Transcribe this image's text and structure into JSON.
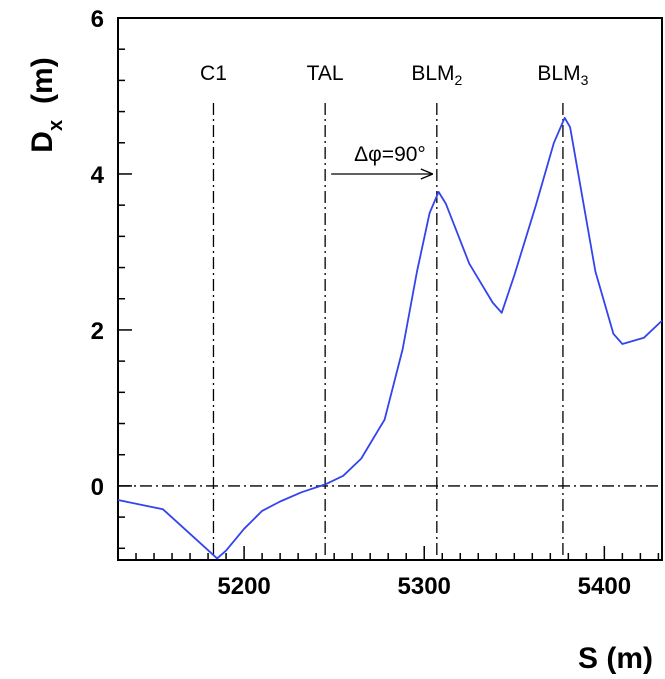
{
  "chart_data": {
    "type": "line",
    "title": "",
    "xlabel": "S  (m)",
    "ylabel": {
      "main": "D",
      "sub": "x",
      "unit": "(m)"
    },
    "xlim": [
      5130,
      5432
    ],
    "ylim": [
      -0.95,
      6
    ],
    "xticks": [
      5200,
      5300,
      5400
    ],
    "yticks": [
      0,
      2,
      4,
      6
    ],
    "grid": false,
    "series": [
      {
        "color": "#3344ee",
        "x": [
          5130,
          5155,
          5175,
          5185,
          5190,
          5200,
          5210,
          5220,
          5232,
          5245,
          5255,
          5265,
          5278,
          5288,
          5296,
          5303,
          5308,
          5312,
          5325,
          5338,
          5343,
          5350,
          5362,
          5372,
          5378,
          5381,
          5395,
          5405,
          5410,
          5422,
          5432
        ],
        "y": [
          -0.18,
          -0.3,
          -0.72,
          -0.93,
          -0.83,
          -0.55,
          -0.32,
          -0.2,
          -0.08,
          0.02,
          0.13,
          0.35,
          0.85,
          1.75,
          2.75,
          3.5,
          3.77,
          3.62,
          2.85,
          2.35,
          2.22,
          2.7,
          3.6,
          4.4,
          4.72,
          4.6,
          2.75,
          1.95,
          1.82,
          1.9,
          2.12
        ]
      }
    ],
    "hlines": [
      {
        "y": 0,
        "style": "dashdot"
      }
    ],
    "markers": [
      {
        "label": "C1",
        "sub": "",
        "x": 5183
      },
      {
        "label": "TAL",
        "sub": "",
        "x": 5245
      },
      {
        "label": "BLM",
        "sub": "2",
        "x": 5307
      },
      {
        "label": "BLM",
        "sub": "3",
        "x": 5377
      }
    ],
    "annotation": {
      "text": "Δφ=90°",
      "x_from": 5245,
      "x_to": 5307,
      "y": 4.0
    }
  },
  "colors": {
    "curve": "#3344ee",
    "axes": "#000000"
  }
}
